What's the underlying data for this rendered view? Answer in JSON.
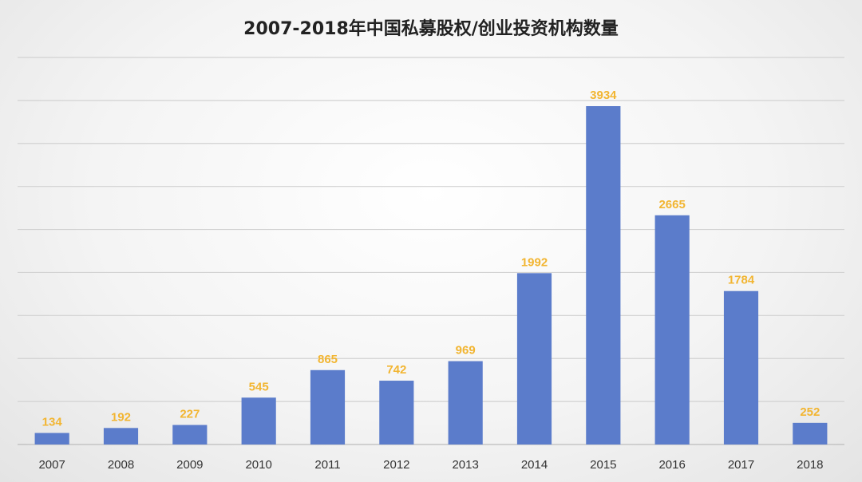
{
  "chart_data": {
    "type": "bar",
    "title": "2007-2018年中国私募股权/创业投资机构数量",
    "xlabel": "",
    "ylabel": "",
    "categories": [
      "2007",
      "2008",
      "2009",
      "2010",
      "2011",
      "2012",
      "2013",
      "2014",
      "2015",
      "2016",
      "2017",
      "2018"
    ],
    "values": [
      134,
      192,
      227,
      545,
      865,
      742,
      969,
      1992,
      3934,
      2665,
      1784,
      252
    ],
    "ylim": [
      0,
      4500
    ],
    "grid": true,
    "legend": "none",
    "colors": {
      "bar": "#5b7ccb",
      "data_label": "#f2b531"
    }
  }
}
